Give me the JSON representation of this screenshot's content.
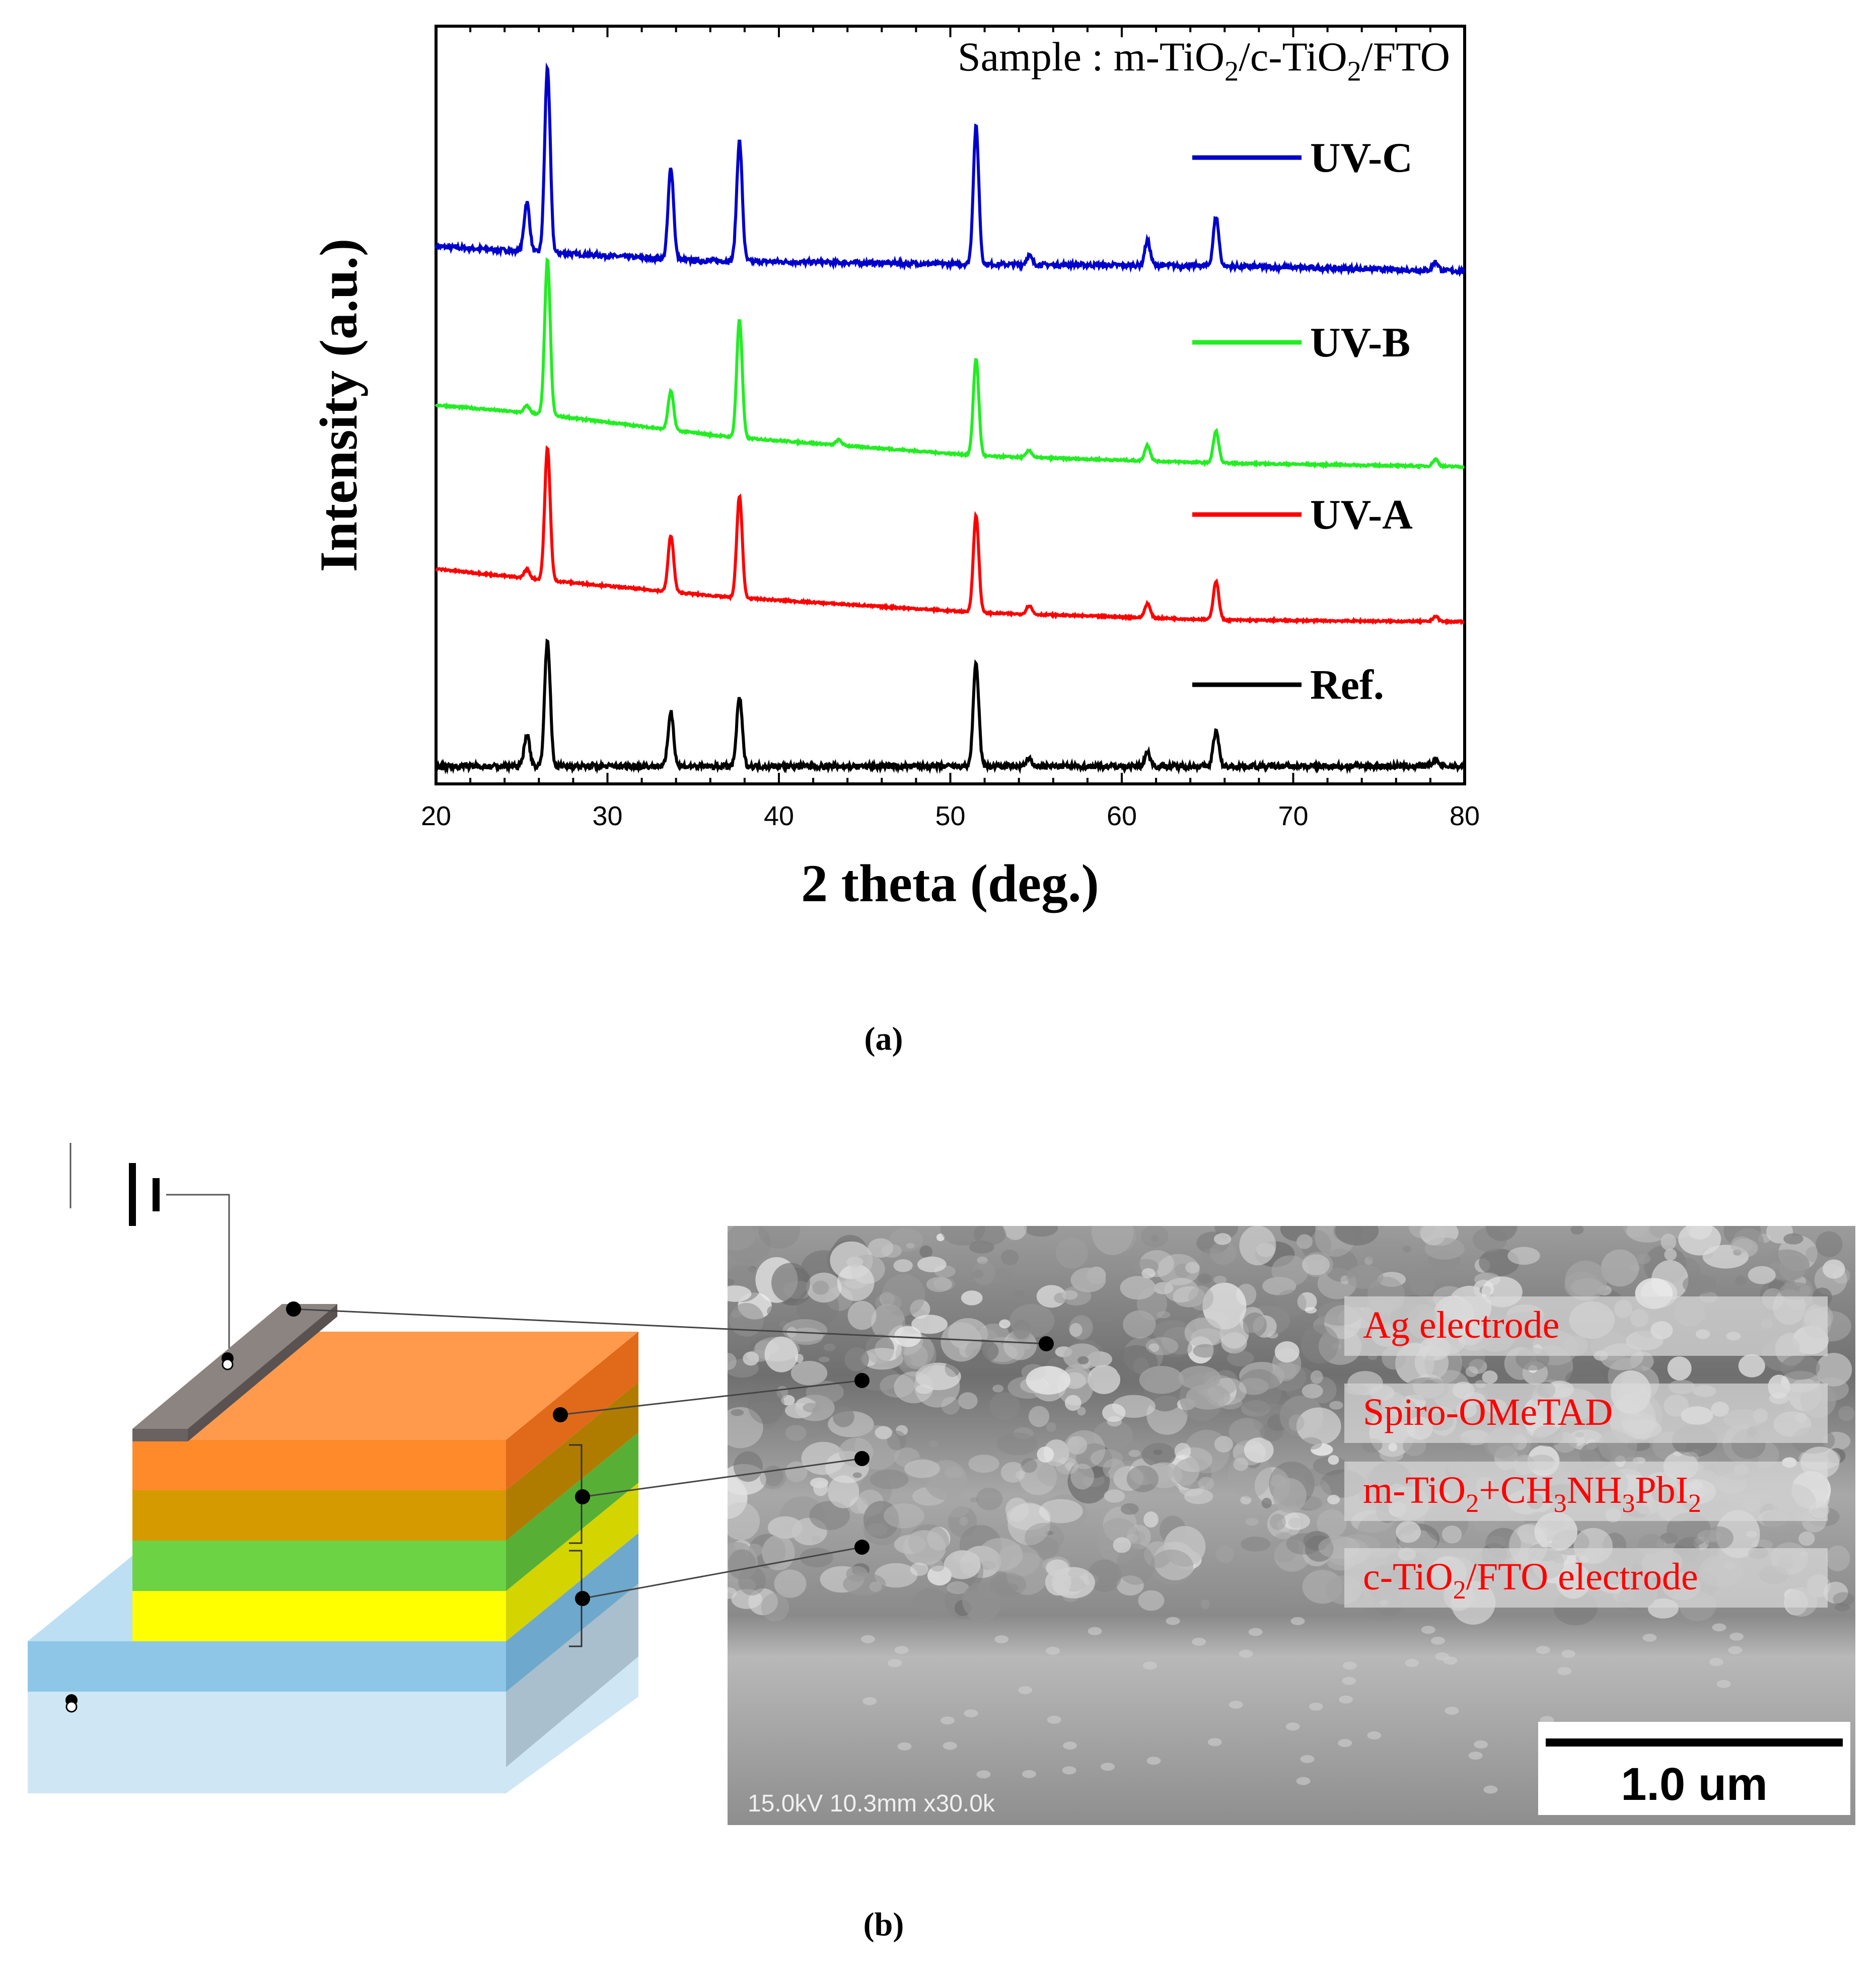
{
  "panel_a": {
    "label": "(a)",
    "sample_label": "Sample : m-TiO",
    "sample_label_parts": [
      "m-TiO",
      "2",
      "/c-TiO",
      "2",
      "/FTO"
    ],
    "chart_data": {
      "type": "line",
      "title": "",
      "xlabel": "2 theta (deg.)",
      "ylabel": "Intensity (a.u.)",
      "xlim": [
        20,
        80
      ],
      "xticks": [
        20,
        30,
        40,
        50,
        60,
        70,
        80
      ],
      "y_units": "a.u.",
      "grid": false,
      "legend_position": "right, inline next to each trace",
      "series": [
        {
          "name": "UV-C",
          "color": "#0000cc",
          "baseline": [
            [
              20,
              3.05
            ],
            [
              35,
              2.97
            ],
            [
              50,
              2.95
            ],
            [
              65,
              2.94
            ],
            [
              80,
              2.91
            ]
          ],
          "peaks": [
            [
              25.3,
              0.28
            ],
            [
              26.5,
              1.05
            ],
            [
              33.7,
              0.52
            ],
            [
              37.7,
              0.68
            ],
            [
              51.5,
              0.78
            ],
            [
              54.6,
              0.05
            ],
            [
              61.5,
              0.14
            ],
            [
              65.5,
              0.28
            ],
            [
              78.3,
              0.05
            ]
          ]
        },
        {
          "name": "UV-B",
          "color": "#22ee22",
          "baseline": [
            [
              20,
              2.15
            ],
            [
              26,
              2.1
            ],
            [
              37,
              1.97
            ],
            [
              52,
              1.86
            ],
            [
              66,
              1.82
            ],
            [
              80,
              1.8
            ]
          ],
          "peaks": [
            [
              25.3,
              0.04
            ],
            [
              26.5,
              0.88
            ],
            [
              33.7,
              0.22
            ],
            [
              37.7,
              0.67
            ],
            [
              43.5,
              0.03
            ],
            [
              51.5,
              0.55
            ],
            [
              54.6,
              0.04
            ],
            [
              61.5,
              0.09
            ],
            [
              65.5,
              0.18
            ],
            [
              78.3,
              0.04
            ]
          ]
        },
        {
          "name": "UV-A",
          "color": "#ff0000",
          "baseline": [
            [
              20,
              1.22
            ],
            [
              26,
              1.16
            ],
            [
              37,
              1.06
            ],
            [
              52,
              0.97
            ],
            [
              66,
              0.93
            ],
            [
              80,
              0.92
            ]
          ],
          "peaks": [
            [
              25.3,
              0.05
            ],
            [
              26.5,
              0.75
            ],
            [
              33.7,
              0.32
            ],
            [
              37.7,
              0.58
            ],
            [
              51.5,
              0.55
            ],
            [
              54.6,
              0.05
            ],
            [
              61.5,
              0.08
            ],
            [
              65.5,
              0.22
            ],
            [
              78.3,
              0.03
            ]
          ]
        },
        {
          "name": "Ref.",
          "color": "#000000",
          "baseline": [
            [
              20,
              0.1
            ],
            [
              50,
              0.1
            ],
            [
              80,
              0.1
            ]
          ],
          "peaks": [
            [
              25.3,
              0.18
            ],
            [
              26.5,
              0.72
            ],
            [
              33.7,
              0.31
            ],
            [
              37.7,
              0.39
            ],
            [
              51.5,
              0.58
            ],
            [
              54.6,
              0.04
            ],
            [
              61.5,
              0.08
            ],
            [
              65.5,
              0.2
            ],
            [
              78.3,
              0.04
            ]
          ]
        }
      ]
    }
  },
  "panel_b": {
    "label": "(b)",
    "sem": {
      "labels": [
        {
          "parts": [
            {
              "t": "Ag electrode"
            }
          ]
        },
        {
          "parts": [
            {
              "t": "Spiro-OMeTAD"
            }
          ]
        },
        {
          "parts": [
            {
              "t": "m-TiO"
            },
            {
              "t": "2",
              "sub": true
            },
            {
              "t": "+CH"
            },
            {
              "t": "3",
              "sub": true
            },
            {
              "t": "NH"
            },
            {
              "t": "3",
              "sub": true
            },
            {
              "t": "PbI"
            },
            {
              "t": "2",
              "sub": true
            }
          ]
        },
        {
          "parts": [
            {
              "t": "c-TiO"
            },
            {
              "t": "2",
              "sub": true
            },
            {
              "t": "/FTO  electrode"
            }
          ]
        }
      ],
      "info_text": "15.0kV 10.3mm x30.0k",
      "scale_bar_text": "1.0 um",
      "label_color": "#ff0000"
    },
    "device_colors": {
      "electrode": "#8c8480",
      "spiro": "#ff9a4d",
      "perovskite": "#d49a00",
      "mtio2": "#6cd444",
      "ctio2": "#ffff00",
      "fto": "#8ec6e8",
      "glass": "#cfe6f5"
    }
  }
}
